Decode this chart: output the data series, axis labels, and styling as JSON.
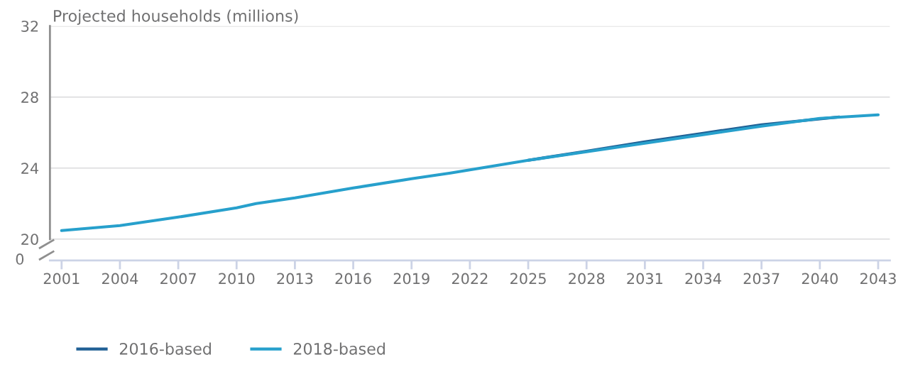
{
  "chart_data": {
    "type": "line",
    "ylabel": "Projected households (millions)",
    "xlim": [
      2000.4,
      2043.6
    ],
    "xticks": [
      2001,
      2004,
      2007,
      2010,
      2013,
      2016,
      2019,
      2022,
      2025,
      2028,
      2031,
      2034,
      2037,
      2040,
      2043
    ],
    "ylim": [
      18.8,
      32
    ],
    "yticks": [
      20,
      24,
      28,
      32
    ],
    "annotations": [
      "0"
    ],
    "grid": "y",
    "legend": "bottom left",
    "marker": "none",
    "line_style": "solid",
    "series": [
      {
        "name": "2016-based",
        "color": "#206095",
        "x": [
          2025,
          2028,
          2031,
          2034,
          2037,
          2041
        ],
        "values": [
          24.44,
          24.95,
          25.48,
          25.96,
          26.44,
          26.88
        ]
      },
      {
        "name": "2018-based",
        "color": "#27a0cc",
        "x": [
          2001,
          2004,
          2007,
          2010,
          2011,
          2013,
          2016,
          2019,
          2021,
          2025,
          2028,
          2031,
          2034,
          2037,
          2040,
          2043
        ],
        "values": [
          20.48,
          20.76,
          21.24,
          21.76,
          22.0,
          22.32,
          22.88,
          23.4,
          23.72,
          24.44,
          24.92,
          25.4,
          25.88,
          26.36,
          26.8,
          27.0
        ]
      }
    ]
  }
}
